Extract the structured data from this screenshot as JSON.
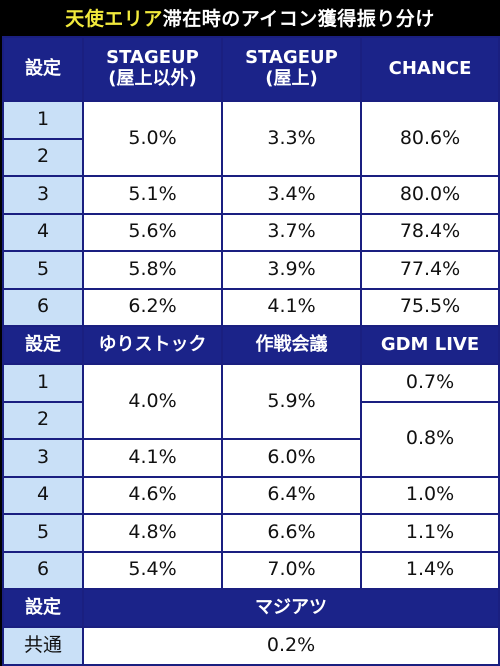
{
  "title": {
    "highlight": "天使エリア",
    "rest": "滞在時のアイコン獲得振り分け"
  },
  "colors": {
    "header_bg": "#1b2389",
    "setting_bg": "#c9e0f7",
    "title_highlight": "#f2ea3c"
  },
  "section1": {
    "headers": [
      "設定",
      "STAGEUP\n(屋上以外)",
      "STAGEUP\n(屋上)",
      "CHANCE"
    ],
    "h_set": "設定",
    "h_c1_line1": "STAGEUP",
    "h_c1_line2": "(屋上以外)",
    "h_c2_line1": "STAGEUP",
    "h_c2_line2": "(屋上)",
    "h_c3": "CHANCE",
    "rows": [
      {
        "setting": "1",
        "c1": "5.0%",
        "c2": "3.3%",
        "c3": "80.6%"
      },
      {
        "setting": "2"
      },
      {
        "setting": "3",
        "c1": "5.1%",
        "c2": "3.4%",
        "c3": "80.0%"
      },
      {
        "setting": "4",
        "c1": "5.6%",
        "c2": "3.7%",
        "c3": "78.4%"
      },
      {
        "setting": "5",
        "c1": "5.8%",
        "c2": "3.9%",
        "c3": "77.4%"
      },
      {
        "setting": "6",
        "c1": "6.2%",
        "c2": "4.1%",
        "c3": "75.5%"
      }
    ]
  },
  "section2": {
    "h_set": "設定",
    "h_c1": "ゆりストック",
    "h_c2": "作戦会議",
    "h_c3": "GDM LIVE",
    "rows": [
      {
        "setting": "1",
        "c1": "4.0%",
        "c2": "5.9%",
        "c3": "0.7%"
      },
      {
        "setting": "2",
        "c3": "0.8%"
      },
      {
        "setting": "3",
        "c1": "4.1%",
        "c2": "6.0%"
      },
      {
        "setting": "4",
        "c1": "4.6%",
        "c2": "6.4%",
        "c3": "1.0%"
      },
      {
        "setting": "5",
        "c1": "4.8%",
        "c2": "6.6%",
        "c3": "1.1%"
      },
      {
        "setting": "6",
        "c1": "5.4%",
        "c2": "7.0%",
        "c3": "1.4%"
      }
    ]
  },
  "section3": {
    "h_set": "設定",
    "h_c1": "マジアツ",
    "rows": [
      {
        "setting": "共通",
        "c1": "0.2%"
      }
    ]
  }
}
